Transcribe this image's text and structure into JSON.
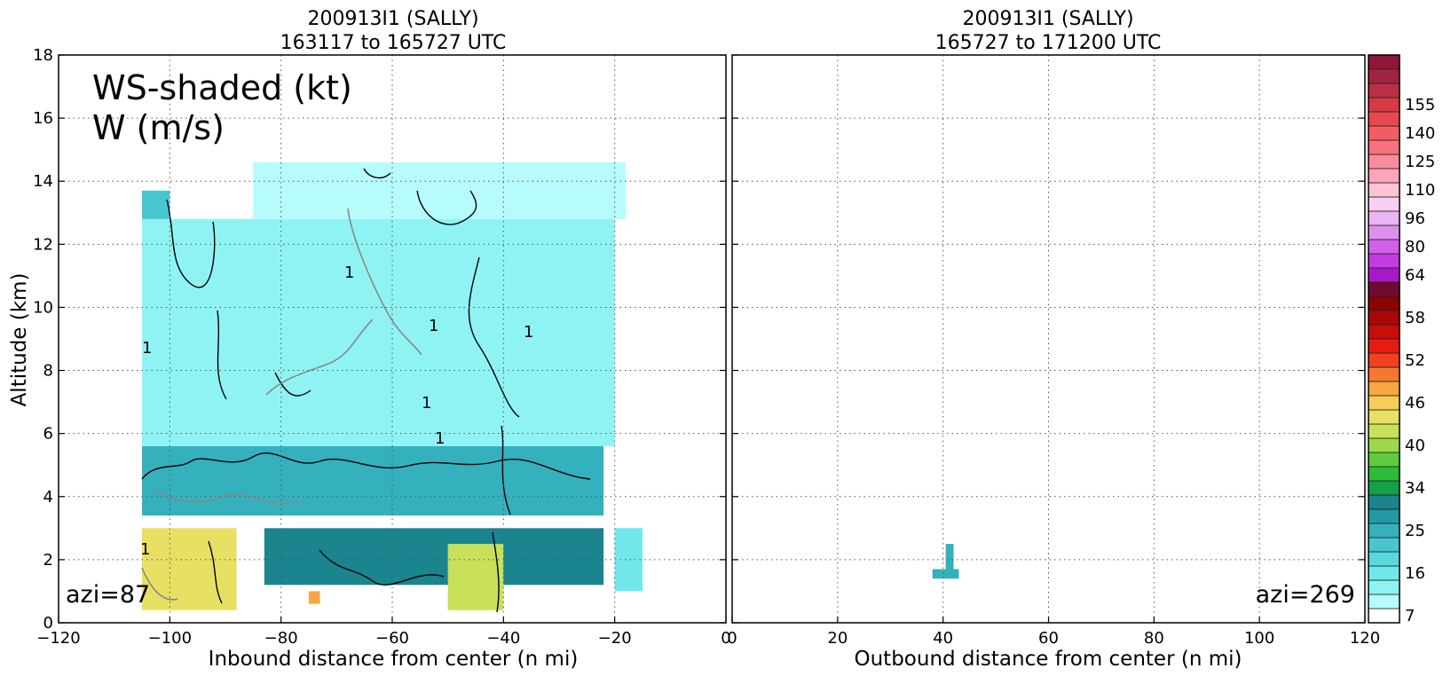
{
  "chart_data": [
    {
      "type": "heatmap",
      "panel": "left",
      "title_line1": "200913I1 (SALLY)",
      "title_line2": "163117 to 165727 UTC",
      "xlabel": "Inbound distance from center (n mi)",
      "ylabel": "Altitude (km)",
      "xlim": [
        -120,
        0
      ],
      "ylim": [
        0,
        18
      ],
      "x_ticks": [
        -120,
        -100,
        -80,
        -60,
        -40,
        -20,
        0
      ],
      "y_ticks": [
        0,
        2,
        4,
        6,
        8,
        10,
        12,
        14,
        16,
        18
      ],
      "grid": true,
      "annotation_line1": "WS-shaded (kt)",
      "annotation_line2": "W (m/s)",
      "azimuth_label": "azi=87",
      "contour_label": "1",
      "shaded_regions": [
        {
          "x": [
            -105,
            -22
          ],
          "y": [
            3.4,
            5.6
          ],
          "ws_kt": 25
        },
        {
          "x": [
            -105,
            -20
          ],
          "y": [
            5.6,
            12.8
          ],
          "ws_kt": 13
        },
        {
          "x": [
            -85,
            -18
          ],
          "y": [
            12.8,
            14.6
          ],
          "ws_kt": 11
        },
        {
          "x": [
            -105,
            -100
          ],
          "y": [
            12.8,
            13.7
          ],
          "ws_kt": 22
        },
        {
          "x": [
            -27,
            -22
          ],
          "y": [
            8.5,
            9.0
          ],
          "ws_kt": 14
        },
        {
          "x": [
            -105,
            -88
          ],
          "y": [
            0.4,
            3.0
          ],
          "ws_kt": 44
        },
        {
          "x": [
            -83,
            -22
          ],
          "y": [
            1.2,
            3.0
          ],
          "ws_kt": 32
        },
        {
          "x": [
            -50,
            -40
          ],
          "y": [
            0.4,
            2.5
          ],
          "ws_kt": 42
        },
        {
          "x": [
            -20,
            -15
          ],
          "y": [
            1.0,
            3.0
          ],
          "ws_kt": 16
        },
        {
          "x": [
            -75,
            -73
          ],
          "y": [
            0.6,
            1.0
          ],
          "ws_kt": 49
        }
      ]
    },
    {
      "type": "heatmap",
      "panel": "right",
      "title_line1": "200913I1 (SALLY)",
      "title_line2": "165727 to 171200 UTC",
      "xlabel": "Outbound distance from center (n mi)",
      "xlim": [
        0,
        120
      ],
      "ylim": [
        0,
        18
      ],
      "x_ticks": [
        0,
        20,
        40,
        60,
        80,
        100,
        120
      ],
      "grid": true,
      "azimuth_label": "azi=269",
      "shaded_regions": [
        {
          "x": [
            40.5,
            42
          ],
          "y": [
            1.4,
            2.5
          ],
          "ws_kt": 25
        },
        {
          "x": [
            38,
            43
          ],
          "y": [
            1.4,
            1.7
          ],
          "ws_kt": 25
        }
      ]
    }
  ],
  "colorbar": {
    "tick_labels": [
      "7",
      "16",
      "25",
      "34",
      "40",
      "46",
      "52",
      "58",
      "64",
      "80",
      "96",
      "110",
      "125",
      "140",
      "155"
    ],
    "tick_values": [
      7,
      16,
      25,
      34,
      40,
      46,
      52,
      58,
      64,
      80,
      96,
      110,
      125,
      140,
      155
    ],
    "colors": [
      "#ffffff",
      "#b7fcfc",
      "#8ff3f3",
      "#70e8eb",
      "#5ad8df",
      "#47c6d0",
      "#34b1bd",
      "#2398a6",
      "#1a848f",
      "#13a145",
      "#2cbb3c",
      "#5dcc3e",
      "#9cd94a",
      "#c8e05a",
      "#e8e063",
      "#f5cf55",
      "#f7a73f",
      "#f4782f",
      "#f3411f",
      "#e81b12",
      "#c80d0b",
      "#a90709",
      "#8a0303",
      "#6f0b30",
      "#a818c6",
      "#c43ae3",
      "#d161ea",
      "#de90ef",
      "#ebb5f2",
      "#f6d0f3",
      "#fcc3d5",
      "#fca5b9",
      "#fa8b9b",
      "#f8737b",
      "#f25d63",
      "#e9484f",
      "#d53a45",
      "#b93044",
      "#a42342",
      "#8f1639"
    ]
  }
}
